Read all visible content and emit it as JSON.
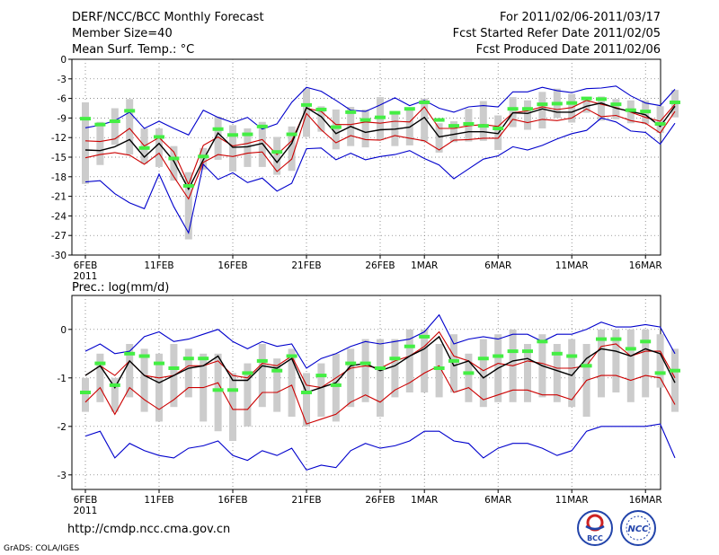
{
  "header": {
    "title": "DERF/NCC/BCC Monthly Forecast",
    "member_size": "Member Size=40",
    "period": "For 2011/02/06-2011/03/17",
    "started": "Fcst Started Refer Date 2011/02/05",
    "produced": "Fcst Produced Date 2011/02/06"
  },
  "footer": {
    "url": "http://cmdp.ncc.cma.gov.cn",
    "grads": "GrADS: COLA/IGES",
    "logo_bcc": "BCC",
    "logo_ncc": "NCC"
  },
  "colors": {
    "max_min": "#0000cc",
    "ens_spread": "#cc0000",
    "mean": "#000000",
    "box": "#cccccc",
    "marker": "#44ee44",
    "grid": "#666666"
  },
  "chart_data": [
    {
      "type": "line",
      "title": "Mean Surf. Temp.: °C",
      "x_tick_labels": [
        "6FEB",
        "11FEB",
        "16FEB",
        "21FEB",
        "26FEB",
        "1MAR",
        "6MAR",
        "11MAR",
        "16MAR"
      ],
      "x_tick_days": [
        0,
        5,
        10,
        15,
        20,
        23,
        28,
        33,
        38
      ],
      "year_label": "2011",
      "ylim": [
        -30,
        0
      ],
      "y_ticks": [
        0,
        -3,
        -6,
        -9,
        -12,
        -15,
        -18,
        -21,
        -24,
        -27,
        -30
      ],
      "y_tick_labels": [
        "0",
        "-3",
        "-6",
        "-9",
        "-12",
        "-15",
        "-18",
        "-21",
        "-24",
        "-27",
        "-30"
      ],
      "grid": true,
      "x_days": [
        0,
        1,
        2,
        3,
        4,
        5,
        6,
        7,
        8,
        9,
        10,
        11,
        12,
        13,
        14,
        15,
        16,
        17,
        18,
        19,
        20,
        21,
        22,
        23,
        24,
        25,
        26,
        27,
        28,
        29,
        30,
        31,
        32,
        33,
        34,
        35,
        36,
        37,
        38,
        39,
        40
      ],
      "series": [
        {
          "name": "max",
          "values": [
            -10.5,
            -10.1,
            -9.4,
            -8.1,
            -10.6,
            -9.5,
            -10.6,
            -11.6,
            -7.8,
            -8.9,
            -9.7,
            -8.9,
            -10.7,
            -9.9,
            -6.6,
            -4.3,
            -4.9,
            -6.3,
            -7.8,
            -8.0,
            -7.0,
            -5.9,
            -7.1,
            -6.3,
            -7.5,
            -8.1,
            -7.3,
            -7.1,
            -7.3,
            -5.0,
            -5.0,
            -4.3,
            -4.8,
            -5.1,
            -4.5,
            -4.4,
            -4.1,
            -5.6,
            -6.7,
            -7.1,
            -4.6
          ]
        },
        {
          "name": "upper",
          "values": [
            -12.5,
            -12.6,
            -12.2,
            -10.6,
            -13.3,
            -12.0,
            -14.2,
            -19.2,
            -13.2,
            -11.9,
            -13.3,
            -12.9,
            -12.3,
            -14.6,
            -12.5,
            -7.5,
            -8.0,
            -10.0,
            -10.0,
            -9.6,
            -9.8,
            -9.5,
            -9.6,
            -7.3,
            -10.6,
            -10.6,
            -10.2,
            -10.0,
            -10.3,
            -8.2,
            -7.9,
            -7.3,
            -7.7,
            -7.4,
            -6.3,
            -6.9,
            -7.4,
            -8.1,
            -8.9,
            -9.5,
            -6.9
          ]
        },
        {
          "name": "mean",
          "values": [
            -13.9,
            -14.0,
            -13.4,
            -12.3,
            -15.0,
            -12.9,
            -15.6,
            -19.9,
            -15.4,
            -11.3,
            -13.5,
            -13.4,
            -12.9,
            -15.8,
            -12.9,
            -7.4,
            -8.8,
            -11.4,
            -10.3,
            -11.2,
            -10.8,
            -10.7,
            -10.4,
            -8.9,
            -11.9,
            -11.5,
            -11.1,
            -11.1,
            -11.4,
            -8.2,
            -8.3,
            -7.6,
            -8.1,
            -8.1,
            -7.2,
            -6.7,
            -7.5,
            -8.0,
            -8.5,
            -10.3,
            -7.2
          ]
        },
        {
          "name": "lower",
          "values": [
            -15.1,
            -14.6,
            -14.3,
            -14.7,
            -16.1,
            -14.4,
            -18.0,
            -21.4,
            -15.8,
            -14.6,
            -14.9,
            -14.4,
            -14.2,
            -17.2,
            -15.3,
            -8.3,
            -10.8,
            -12.8,
            -11.7,
            -12.3,
            -12.4,
            -11.7,
            -12.1,
            -12.5,
            -13.9,
            -12.4,
            -12.3,
            -12.1,
            -12.1,
            -9.2,
            -9.7,
            -9.2,
            -9.4,
            -9.0,
            -7.6,
            -8.8,
            -8.6,
            -9.4,
            -9.8,
            -11.3,
            -8.0
          ]
        },
        {
          "name": "min",
          "values": [
            -18.8,
            -18.6,
            -20.6,
            -22.0,
            -22.9,
            -17.6,
            -22.6,
            -26.6,
            -16.1,
            -18.4,
            -17.4,
            -18.9,
            -18.2,
            -20.2,
            -19.0,
            -13.7,
            -13.6,
            -15.4,
            -14.4,
            -15.4,
            -14.9,
            -14.6,
            -14.0,
            -15.2,
            -16.2,
            -18.3,
            -16.8,
            -15.3,
            -14.8,
            -13.4,
            -13.9,
            -13.2,
            -12.2,
            -11.4,
            -10.9,
            -9.0,
            -9.6,
            -11.0,
            -11.2,
            -13.0,
            -9.8
          ]
        }
      ],
      "box_high": [
        -6.6,
        -9.6,
        -7.5,
        -6.1,
        -10.6,
        -10.6,
        -13.3,
        -17.3,
        -13.6,
        -8.8,
        -10.1,
        -10.6,
        -9.6,
        -11.9,
        -10.3,
        -4.5,
        -7.2,
        -7.7,
        -7.3,
        -7.7,
        -5.8,
        -8.0,
        -7.6,
        -6.0,
        -9.8,
        -9.5,
        -7.6,
        -6.4,
        -8.6,
        -5.8,
        -6.3,
        -5.0,
        -4.5,
        -5.3,
        -6.2,
        -5.7,
        -6.1,
        -6.3,
        -6.3,
        -7.2,
        -4.7
      ],
      "box_low": [
        -19.1,
        -16.2,
        -13.1,
        -14.6,
        -16.0,
        -16.5,
        -18.6,
        -27.6,
        -16.9,
        -15.4,
        -17.2,
        -16.5,
        -16.5,
        -17.7,
        -17.1,
        -11.9,
        -11.1,
        -13.8,
        -13.3,
        -13.5,
        -12.4,
        -13.3,
        -13.2,
        -12.6,
        -14.3,
        -12.7,
        -12.6,
        -12.5,
        -13.9,
        -10.4,
        -10.8,
        -10.6,
        -9.0,
        -9.7,
        -8.2,
        -9.4,
        -9.2,
        -9.8,
        -9.9,
        -11.3,
        -8.9
      ],
      "markers": [
        -9.1,
        -10.0,
        -9.5,
        -7.9,
        -13.6,
        -11.9,
        -15.2,
        -19.4,
        -14.9,
        -10.7,
        -11.6,
        -11.5,
        -10.3,
        -14.2,
        -11.5,
        -7.0,
        -7.7,
        -10.4,
        -8.1,
        -9.3,
        -8.9,
        -8.2,
        -7.6,
        -6.6,
        -9.3,
        -10.2,
        -9.9,
        -10.2,
        -10.6,
        -7.6,
        -7.6,
        -6.9,
        -6.8,
        -6.7,
        -6.0,
        -6.1,
        -6.9,
        -7.8,
        -8.0,
        -9.9,
        -6.6
      ]
    },
    {
      "type": "line",
      "title": "Prec.: log(mm/d)",
      "x_tick_labels": [
        "6FEB",
        "11FEB",
        "16FEB",
        "21FEB",
        "26FEB",
        "1MAR",
        "6MAR",
        "11MAR",
        "16MAR"
      ],
      "x_tick_days": [
        0,
        5,
        10,
        15,
        20,
        23,
        28,
        33,
        38
      ],
      "year_label": "2011",
      "ylim": [
        -3.3,
        0.7
      ],
      "y_ticks": [
        0,
        -1,
        -2,
        -3
      ],
      "y_tick_labels": [
        "0",
        "-1",
        "-2",
        "-3"
      ],
      "grid": true,
      "x_days": [
        0,
        1,
        2,
        3,
        4,
        5,
        6,
        7,
        8,
        9,
        10,
        11,
        12,
        13,
        14,
        15,
        16,
        17,
        18,
        19,
        20,
        21,
        22,
        23,
        24,
        25,
        26,
        27,
        28,
        29,
        30,
        31,
        32,
        33,
        34,
        35,
        36,
        37,
        38,
        39,
        40
      ],
      "series": [
        {
          "name": "max",
          "values": [
            -0.45,
            -0.3,
            -0.5,
            -0.45,
            -0.15,
            -0.05,
            -0.25,
            -0.2,
            -0.1,
            0.0,
            -0.25,
            -0.4,
            -0.25,
            -0.35,
            -0.3,
            -0.8,
            -0.6,
            -0.5,
            -0.35,
            -0.25,
            -0.3,
            -0.25,
            -0.2,
            -0.05,
            0.3,
            -0.3,
            -0.2,
            -0.15,
            -0.2,
            -0.1,
            -0.1,
            -0.25,
            -0.1,
            -0.1,
            0.0,
            0.15,
            0.05,
            0.05,
            0.1,
            0.05,
            -0.5
          ]
        },
        {
          "name": "upper",
          "values": [
            -0.95,
            -0.75,
            -0.95,
            -0.65,
            -0.95,
            -1.0,
            -0.95,
            -0.75,
            -0.75,
            -0.65,
            -0.95,
            -1.0,
            -0.7,
            -0.75,
            -0.55,
            -1.15,
            -1.2,
            -1.0,
            -0.8,
            -0.75,
            -0.8,
            -0.65,
            -0.55,
            -0.35,
            -0.05,
            -0.55,
            -0.65,
            -0.85,
            -0.7,
            -0.75,
            -0.65,
            -0.7,
            -0.8,
            -0.8,
            -0.75,
            -0.35,
            -0.3,
            -0.55,
            -0.45,
            -0.45,
            -1.0
          ]
        },
        {
          "name": "mean",
          "values": [
            -0.95,
            -0.75,
            -1.2,
            -0.65,
            -0.95,
            -1.1,
            -0.95,
            -0.8,
            -0.75,
            -0.55,
            -1.05,
            -1.05,
            -0.75,
            -0.8,
            -0.6,
            -1.3,
            -1.2,
            -1.1,
            -0.75,
            -0.7,
            -0.85,
            -0.75,
            -0.55,
            -0.4,
            -0.15,
            -0.75,
            -0.65,
            -1.0,
            -0.8,
            -0.65,
            -0.6,
            -0.75,
            -0.85,
            -0.95,
            -0.6,
            -0.4,
            -0.45,
            -0.55,
            -0.4,
            -0.5,
            -1.1
          ]
        },
        {
          "name": "lower",
          "values": [
            -1.5,
            -1.2,
            -1.75,
            -1.2,
            -1.45,
            -1.65,
            -1.45,
            -1.2,
            -1.2,
            -1.1,
            -1.65,
            -1.65,
            -1.3,
            -1.3,
            -1.15,
            -1.95,
            -1.85,
            -1.75,
            -1.5,
            -1.35,
            -1.5,
            -1.25,
            -1.1,
            -0.9,
            -0.75,
            -1.3,
            -1.2,
            -1.45,
            -1.35,
            -1.25,
            -1.25,
            -1.35,
            -1.35,
            -1.45,
            -1.05,
            -0.95,
            -0.95,
            -1.05,
            -0.95,
            -1.0,
            -1.55
          ]
        },
        {
          "name": "min",
          "values": [
            -2.2,
            -2.1,
            -2.65,
            -2.35,
            -2.5,
            -2.6,
            -2.65,
            -2.45,
            -2.4,
            -2.3,
            -2.6,
            -2.7,
            -2.5,
            -2.6,
            -2.45,
            -2.9,
            -2.8,
            -2.85,
            -2.5,
            -2.35,
            -2.45,
            -2.4,
            -2.3,
            -2.1,
            -2.1,
            -2.3,
            -2.35,
            -2.65,
            -2.45,
            -2.35,
            -2.35,
            -2.45,
            -2.6,
            -2.5,
            -2.1,
            -2.0,
            -2.0,
            -2.0,
            -2.0,
            -1.95,
            -2.65
          ]
        },
        {
          "name": "markers",
          "values": [
            -1.3,
            -0.7,
            -1.15,
            -0.5,
            -0.55,
            -0.7,
            -0.8,
            -0.6,
            -0.6,
            -1.25,
            -1.25,
            -0.9,
            -0.65,
            -0.85,
            -0.55,
            -1.3,
            -0.95,
            -1.15,
            -0.7,
            -0.7,
            -0.8,
            -0.6,
            -0.35,
            -0.15,
            -0.8,
            -0.65,
            -0.9,
            -0.6,
            -0.55,
            -0.45,
            -0.45,
            -0.25,
            -0.5,
            -0.55,
            -0.75,
            -0.2,
            -0.2,
            -0.4,
            -0.25,
            -0.9,
            -0.85
          ]
        }
      ],
      "box_high": [
        -1.0,
        -0.5,
        -1.0,
        -0.3,
        -0.4,
        -0.5,
        -0.3,
        -0.4,
        -0.5,
        -0.5,
        -0.9,
        -0.7,
        -0.3,
        -0.6,
        -0.4,
        -0.9,
        -0.7,
        -0.5,
        -0.4,
        -0.2,
        -0.2,
        -0.2,
        0.0,
        0.0,
        -0.3,
        -0.1,
        -0.5,
        -0.2,
        -0.1,
        0.0,
        -0.3,
        -0.1,
        -0.3,
        -0.2,
        -0.3,
        0.0,
        0.0,
        0.0,
        0.0,
        -0.1,
        -0.4
      ],
      "box_low": [
        -1.7,
        -1.5,
        -1.7,
        -1.4,
        -1.7,
        -1.9,
        -1.6,
        -1.4,
        -1.9,
        -2.1,
        -2.3,
        -2.0,
        -1.6,
        -1.7,
        -1.8,
        -2.0,
        -1.8,
        -1.9,
        -1.6,
        -1.5,
        -1.8,
        -1.4,
        -1.3,
        -1.3,
        -1.4,
        -1.3,
        -1.5,
        -1.6,
        -1.5,
        -1.5,
        -1.5,
        -1.4,
        -1.5,
        -1.6,
        -1.8,
        -1.4,
        -1.3,
        -1.5,
        -1.4,
        -1.2,
        -1.7
      ]
    }
  ]
}
